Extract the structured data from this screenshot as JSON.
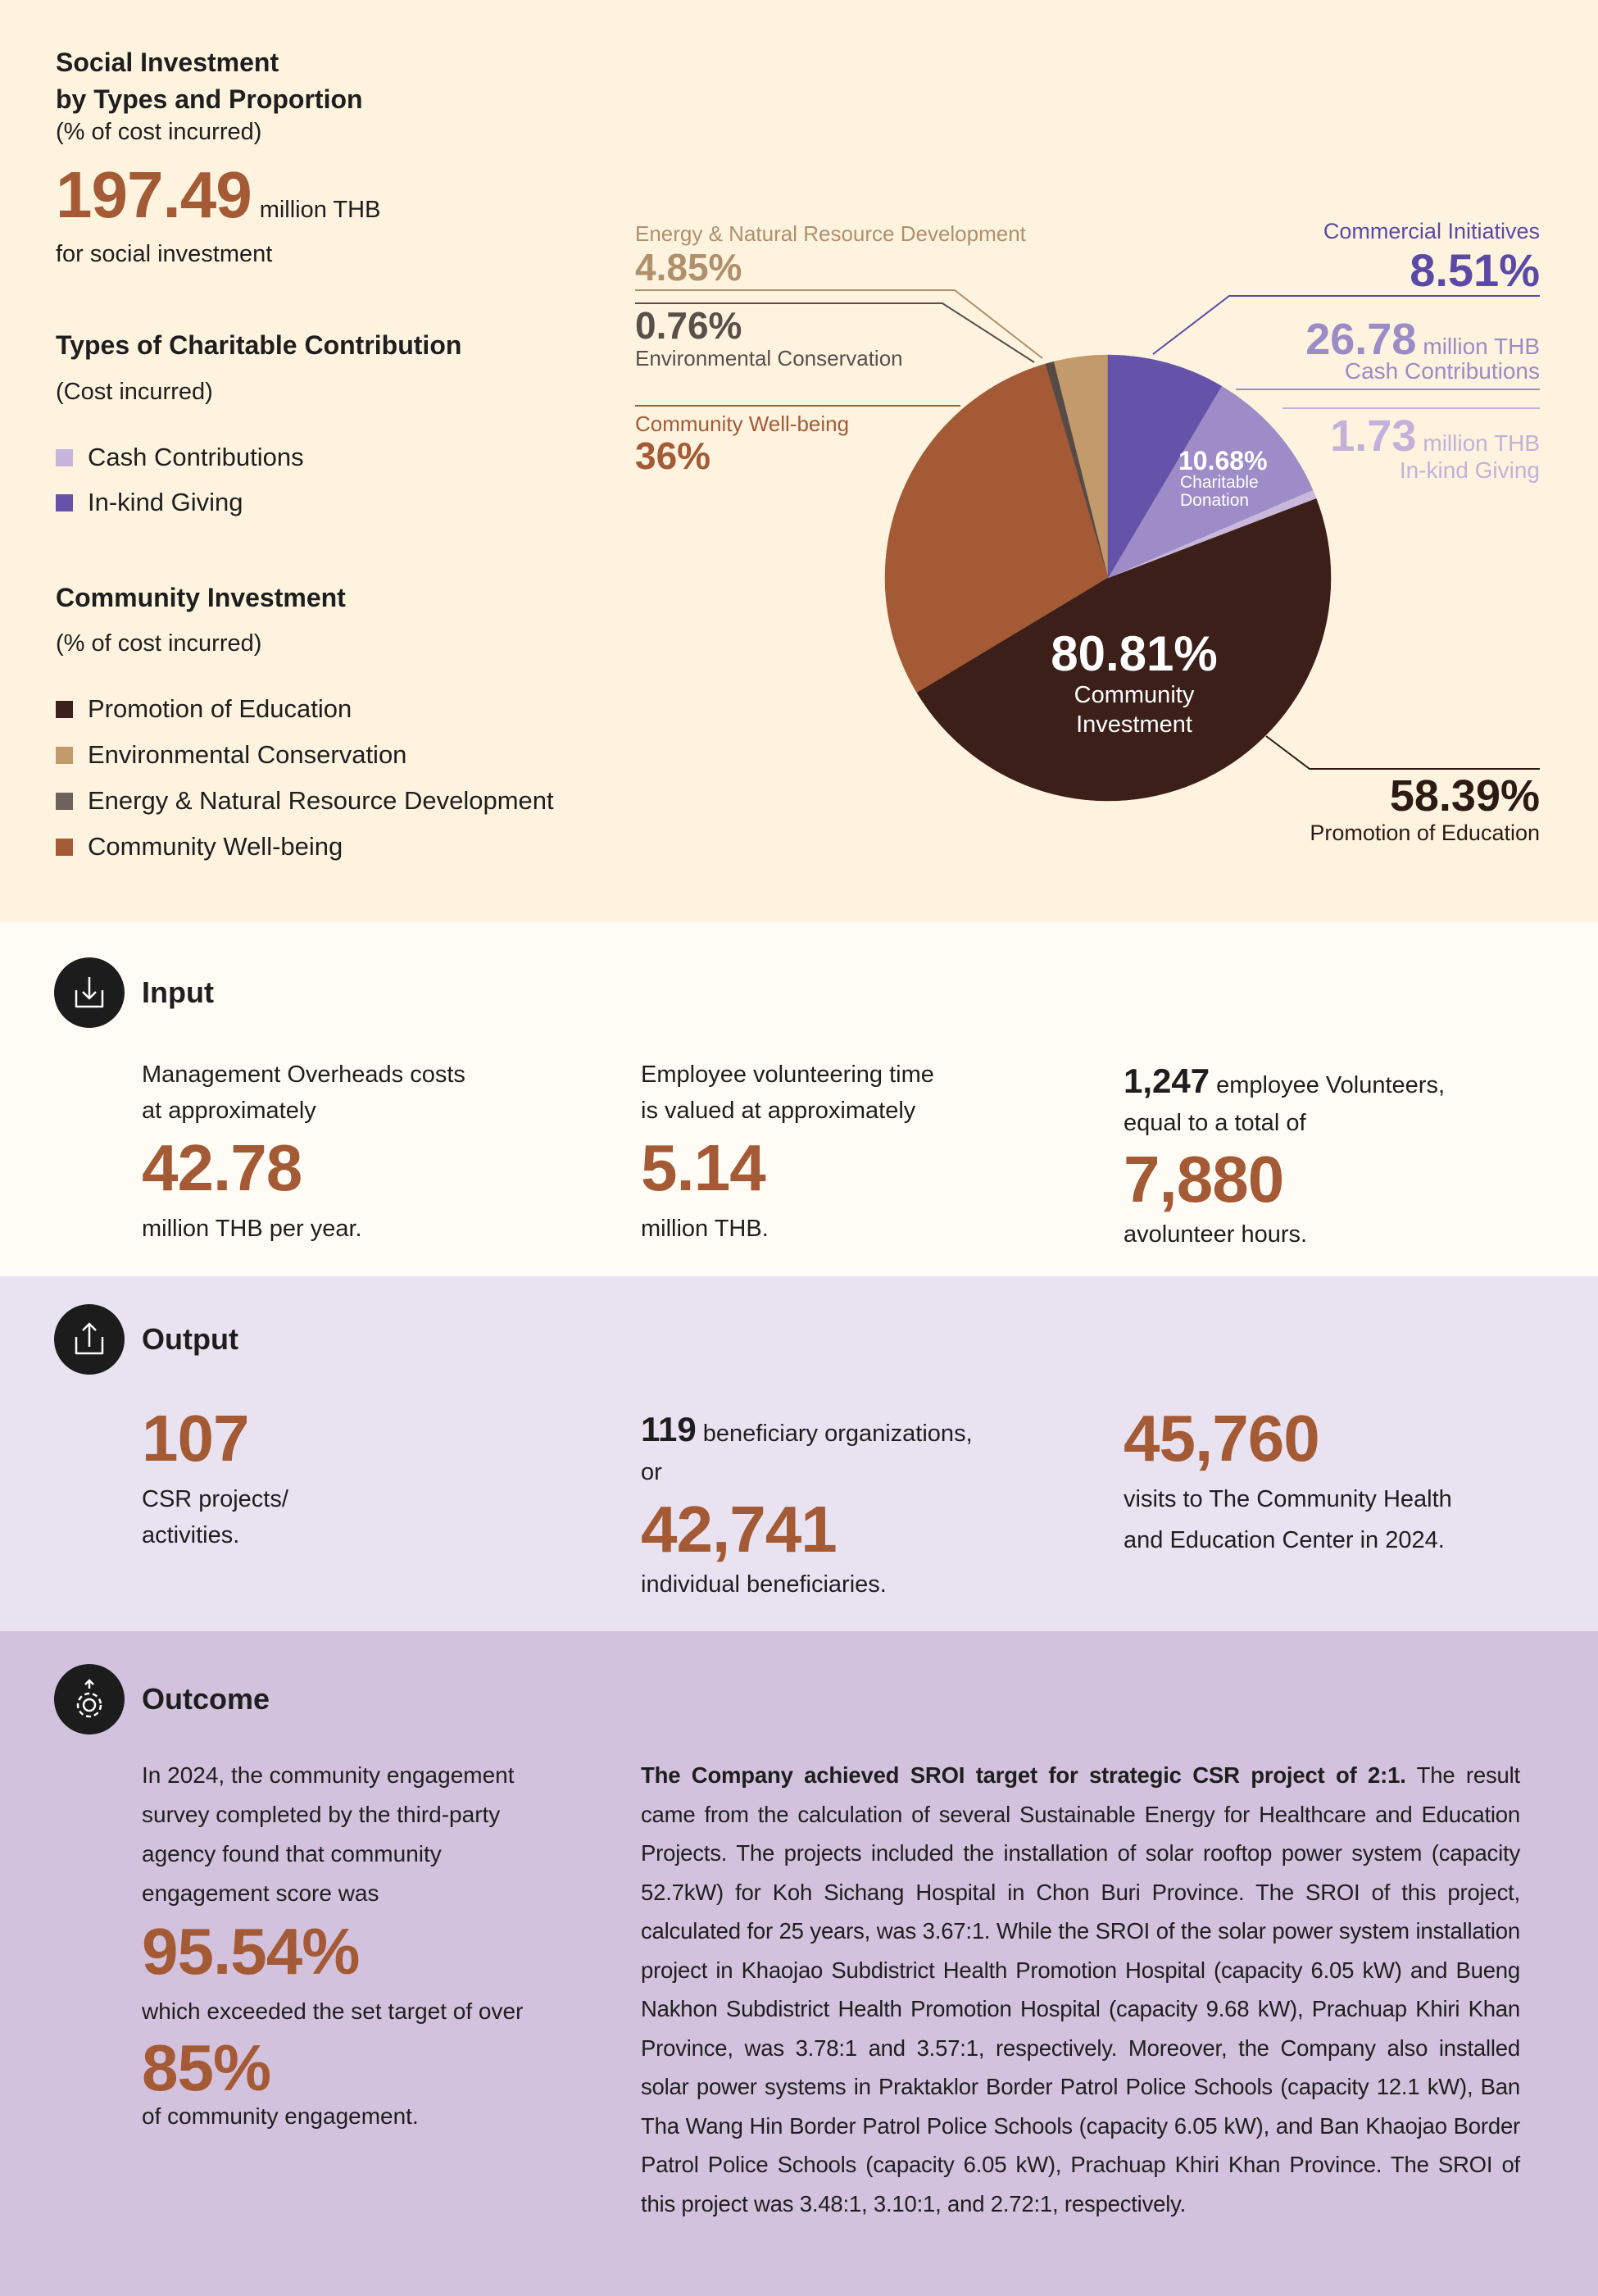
{
  "summary": {
    "title_lines": [
      "Social Investment",
      "by Types and Proportion"
    ],
    "subtitle": "(% of cost incurred)",
    "amount": "197.49",
    "unit": "million THB",
    "note": "for social investment"
  },
  "charitable_legend": {
    "title": "Types of Charitable Contribution",
    "subtitle": "(Cost incurred)",
    "items": [
      {
        "label": "Cash Contributions",
        "color": "#c5b5dc"
      },
      {
        "label": "In-kind Giving",
        "color": "#6453a8"
      }
    ]
  },
  "community_legend": {
    "title": "Community Investment",
    "subtitle": "(% of cost incurred)",
    "items": [
      {
        "label": "Promotion of Education",
        "color": "#3b211b"
      },
      {
        "label": "Environmental Conservation",
        "color": "#c29a6c"
      },
      {
        "label": "Energy & Natural Resource Development",
        "color": "#6e625c"
      },
      {
        "label": "Community Well-being",
        "color": "#a35a35"
      }
    ]
  },
  "chart_data": {
    "type": "pie",
    "groups": [
      {
        "name": "Commercial Initiatives",
        "value": 8.51,
        "value_label": "8.51%",
        "color": "#6453a8"
      },
      {
        "name": "Charitable Donation",
        "value": 10.68,
        "value_label": "10.68%",
        "parts": [
          {
            "name": "Cash Contributions",
            "value": 26.78,
            "unit": "million THB",
            "color": "#9d8cc7"
          },
          {
            "name": "In-kind Giving",
            "value": 1.73,
            "unit": "million THB",
            "color": "#c9b8dc"
          }
        ]
      },
      {
        "name": "Community Investment",
        "value": 80.81,
        "value_label": "80.81%",
        "parts": [
          {
            "name": "Promotion of Education",
            "value": 58.39,
            "value_label": "58.39%",
            "color": "#3b1f18"
          },
          {
            "name": "Community Well-being",
            "value": 36,
            "value_label": "36%",
            "color": "#a35a35"
          },
          {
            "name": "Environmental Conservation",
            "value": 0.76,
            "value_label": "0.76%",
            "color": "#554a45"
          },
          {
            "name": "Energy & Natural Resource Development",
            "value": 4.85,
            "value_label": "4.85%",
            "color": "#c29a6c"
          }
        ]
      }
    ]
  },
  "input": {
    "title": "Input",
    "items": [
      {
        "text_lines": [
          "Management Overheads costs",
          "at approximately"
        ],
        "figure": "42.78",
        "note": "million THB per year."
      },
      {
        "text_lines": [
          "Employee volunteering time",
          "is valued at approximately"
        ],
        "figure": "5.14",
        "note": "million THB."
      },
      {
        "lead": "1,247",
        "text_lines": [
          "employee Volunteers,",
          "equal to a total of"
        ],
        "figure": "7,880",
        "note": "avolunteer hours."
      }
    ]
  },
  "output": {
    "title": "Output",
    "items": [
      {
        "figure": "107",
        "note_lines": [
          "CSR projects/",
          "activities."
        ]
      },
      {
        "lead": "119",
        "text_lines": [
          "beneficiary organizations,",
          "or"
        ],
        "figure": "42,741",
        "note_lines": [
          "individual beneficiaries."
        ]
      },
      {
        "figure": "45,760",
        "note_lines": [
          "visits to The Community Health",
          "and Education Center in 2024."
        ]
      }
    ]
  },
  "outcome": {
    "title": "Outcome",
    "survey_lines": [
      "In 2024, the community engagement",
      "survey completed by the third-party",
      "agency found that community",
      "engagement score was"
    ],
    "score": "95.54%",
    "target_text": "which exceeded the set target of over",
    "target": "85%",
    "target_note": "of community engagement.",
    "sroi_lead": "The Company achieved SROI target for strategic CSR project of 2:1.",
    "sroi_body": "The result came from the calculation of several Sustainable Energy for Healthcare and Education Projects. The projects included the installation of solar rooftop power system (capacity 52.7kW) for Koh Sichang Hospital in Chon Buri Province. The SROI of this project, calculated for 25 years, was 3.67:1. While the SROI of the solar power system installation project in Khaojao Subdistrict Health Promotion Hospital (capacity 6.05 kW) and Bueng Nakhon Subdistrict Health Promotion Hospital (capacity 9.68 kW), Prachuap Khiri Khan Province, was 3.78:1 and 3.57:1, respectively. Moreover, the Company also installed solar power systems in Praktaklor Border Patrol Police Schools (capacity 12.1 kW), Ban Tha Wang Hin Border Patrol Police Schools (capacity 6.05 kW), and Ban Khaojao Border Patrol Police Schools (capacity 6.05 kW), Prachuap Khiri Khan Province. The SROI of this project was 3.48:1, 3.10:1, and 2.72:1, respectively."
  }
}
